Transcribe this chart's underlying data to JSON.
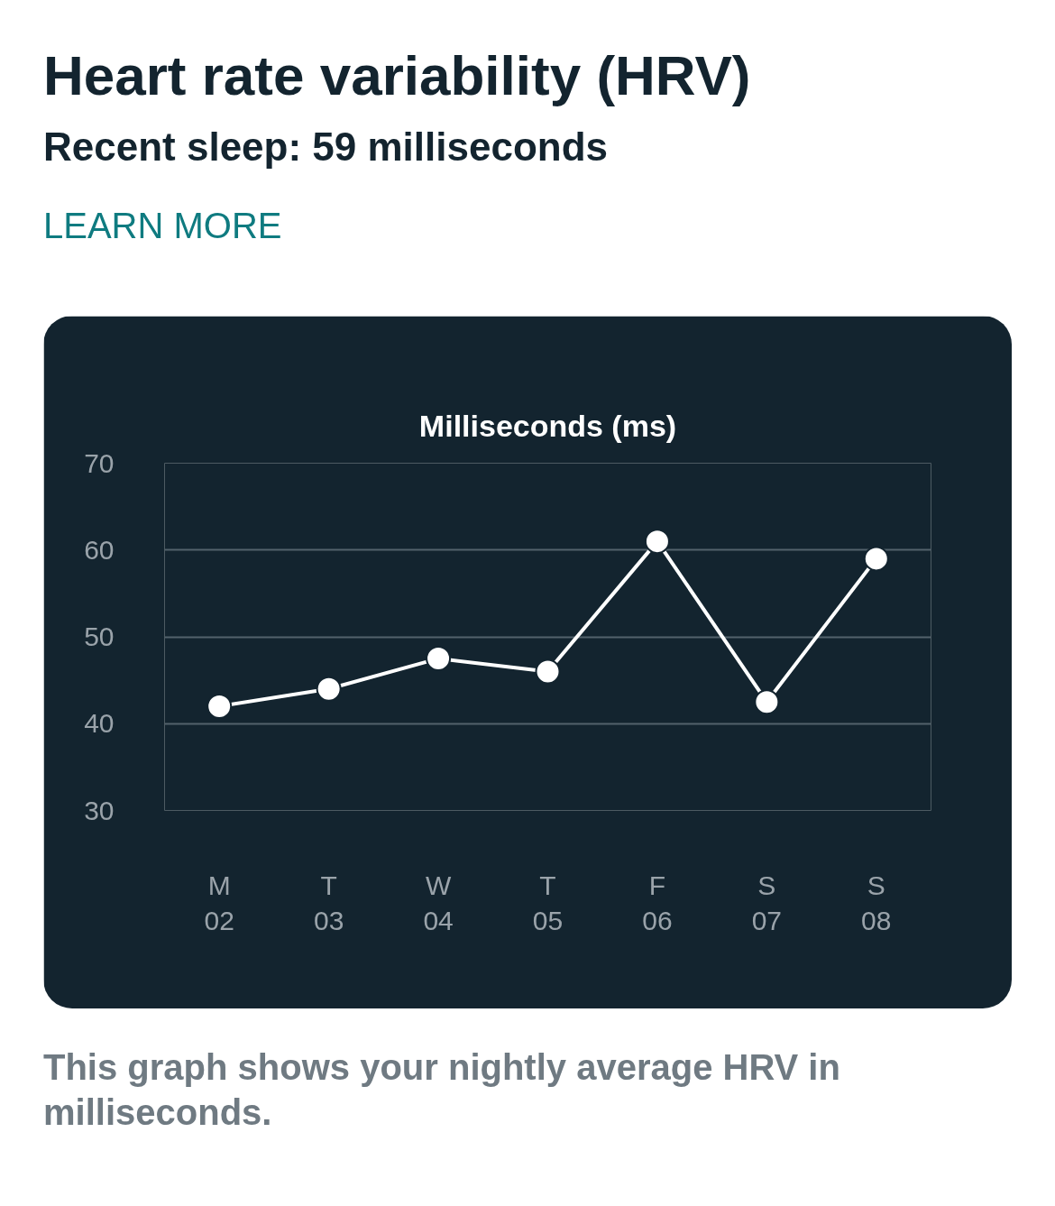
{
  "chart_data": {
    "type": "line",
    "title": "Heart rate variability (HRV)",
    "subtitle": "Recent sleep: 59 milliseconds",
    "ylabel": "Milliseconds (ms)",
    "annotations": [
      "LEARN MORE",
      "This graph shows your nightly average HRV in milliseconds."
    ],
    "categories": [
      "M\n02",
      "T\n03",
      "W\n04",
      "T\n05",
      "F\n06",
      "S\n07",
      "S\n08"
    ],
    "series": [
      {
        "color": "#ffffff",
        "values": [
          42,
          44,
          47.5,
          46,
          61,
          42.5,
          59
        ]
      }
    ],
    "ylim": [
      30,
      70
    ],
    "yticks": [
      30,
      40,
      50,
      60,
      70
    ],
    "grid": "y",
    "marker": "circle",
    "line_style": "solid"
  }
}
